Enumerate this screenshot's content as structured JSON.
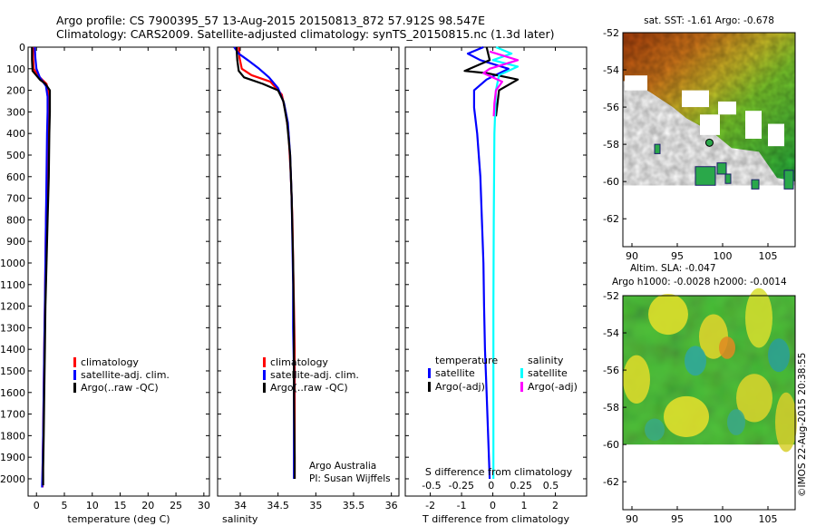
{
  "header": {
    "line1": "Argo profile: CS 7900395_57 13-Aug-2015 20150813_872 57.912S 98.547E",
    "line2": "Climatology: CARS2009. Satellite-adjusted climatology: synTS_20150815.nc (1.3d later)"
  },
  "credit": {
    "line1": "Argo Australia",
    "line2": "PI: Susan Wijffels"
  },
  "watermark": "©IMOS 22-Aug-2015 20:38:55",
  "colors": {
    "climatology": "#ff0000",
    "satellite": "#0000ff",
    "argo": "#000000",
    "sal_satellite": "#00ffff",
    "sal_argo": "#ff00ff"
  },
  "chart_data": [
    {
      "id": "temperature",
      "type": "line",
      "xlabel": "temperature (deg C)",
      "ylabel": "",
      "xlim": [
        -1.5,
        31
      ],
      "ylim": [
        2080,
        0
      ],
      "xticks": [
        0,
        5,
        10,
        15,
        20,
        25,
        30
      ],
      "yticks": [
        0,
        100,
        200,
        300,
        400,
        500,
        600,
        700,
        800,
        900,
        1000,
        1100,
        1200,
        1300,
        1400,
        1500,
        1600,
        1700,
        1800,
        1900,
        2000
      ],
      "legend": [
        "climatology",
        "satellite-adj. clim.",
        "Argo(..raw -QC)"
      ],
      "series": [
        {
          "name": "climatology",
          "color": "#ff0000",
          "points": [
            [
              -0.6,
              0
            ],
            [
              -0.6,
              50
            ],
            [
              -0.5,
              100
            ],
            [
              0.2,
              130
            ],
            [
              1.8,
              170
            ],
            [
              2.2,
              220
            ],
            [
              2.1,
              300
            ],
            [
              2.0,
              400
            ],
            [
              1.9,
              600
            ],
            [
              1.7,
              800
            ],
            [
              1.6,
              1000
            ],
            [
              1.5,
              1200
            ],
            [
              1.4,
              1400
            ],
            [
              1.3,
              1600
            ],
            [
              1.2,
              1800
            ],
            [
              1.1,
              1950
            ],
            [
              1.1,
              2040
            ]
          ]
        },
        {
          "name": "satellite-adj. clim.",
          "color": "#0000ff",
          "points": [
            [
              -0.3,
              0
            ],
            [
              -0.2,
              50
            ],
            [
              0.0,
              100
            ],
            [
              0.6,
              140
            ],
            [
              1.7,
              180
            ],
            [
              2.0,
              230
            ],
            [
              2.0,
              300
            ],
            [
              1.9,
              400
            ],
            [
              1.8,
              600
            ],
            [
              1.7,
              800
            ],
            [
              1.6,
              1000
            ],
            [
              1.5,
              1200
            ],
            [
              1.4,
              1400
            ],
            [
              1.3,
              1600
            ],
            [
              1.2,
              1800
            ],
            [
              1.1,
              1950
            ],
            [
              1.0,
              2040
            ]
          ]
        },
        {
          "name": "Argo(..raw -QC)",
          "color": "#000000",
          "points": [
            [
              -0.8,
              0
            ],
            [
              -0.8,
              60
            ],
            [
              -0.7,
              110
            ],
            [
              0.6,
              150
            ],
            [
              1.6,
              170
            ],
            [
              2.4,
              200
            ],
            [
              2.4,
              300
            ],
            [
              2.3,
              400
            ],
            [
              2.2,
              600
            ],
            [
              2.0,
              800
            ],
            [
              1.8,
              1000
            ],
            [
              1.6,
              1200
            ],
            [
              1.5,
              1400
            ],
            [
              1.4,
              1600
            ],
            [
              1.3,
              1800
            ],
            [
              1.2,
              1950
            ],
            [
              1.2,
              2030
            ]
          ]
        }
      ]
    },
    {
      "id": "salinity",
      "type": "line",
      "xlabel": "salinity",
      "ylabel": "",
      "xlim": [
        33.7,
        36.1
      ],
      "ylim": [
        2080,
        0
      ],
      "xticks": [
        34,
        34.5,
        35,
        35.5,
        36
      ],
      "xticklabels": [
        "34",
        "34.5",
        "35",
        "35.5",
        "36"
      ],
      "legend": [
        "climatology",
        "satellite-adj. clim.",
        "Argo(..raw -QC)"
      ],
      "series": [
        {
          "name": "climatology",
          "color": "#ff0000",
          "points": [
            [
              33.98,
              0
            ],
            [
              33.99,
              50
            ],
            [
              34.02,
              100
            ],
            [
              34.15,
              130
            ],
            [
              34.4,
              160
            ],
            [
              34.55,
              220
            ],
            [
              34.6,
              300
            ],
            [
              34.64,
              400
            ],
            [
              34.67,
              600
            ],
            [
              34.69,
              800
            ],
            [
              34.7,
              1000
            ],
            [
              34.71,
              1200
            ],
            [
              34.72,
              1400
            ],
            [
              34.72,
              1600
            ],
            [
              34.72,
              1800
            ],
            [
              34.72,
              2000
            ]
          ]
        },
        {
          "name": "satellite-adj. clim.",
          "color": "#0000ff",
          "points": [
            [
              33.92,
              0
            ],
            [
              33.98,
              30
            ],
            [
              34.1,
              60
            ],
            [
              34.25,
              100
            ],
            [
              34.38,
              140
            ],
            [
              34.5,
              190
            ],
            [
              34.58,
              260
            ],
            [
              34.63,
              350
            ],
            [
              34.66,
              500
            ],
            [
              34.68,
              700
            ],
            [
              34.69,
              900
            ],
            [
              34.7,
              1100
            ],
            [
              34.7,
              1300
            ],
            [
              34.71,
              1500
            ],
            [
              34.71,
              1700
            ],
            [
              34.71,
              1900
            ],
            [
              34.71,
              2000
            ]
          ]
        },
        {
          "name": "Argo(..raw -QC)",
          "color": "#000000",
          "points": [
            [
              33.95,
              0
            ],
            [
              33.96,
              60
            ],
            [
              33.98,
              110
            ],
            [
              34.05,
              140
            ],
            [
              34.3,
              170
            ],
            [
              34.5,
              200
            ],
            [
              34.57,
              250
            ],
            [
              34.62,
              350
            ],
            [
              34.66,
              500
            ],
            [
              34.68,
              700
            ],
            [
              34.7,
              1000
            ],
            [
              34.71,
              1300
            ],
            [
              34.71,
              1600
            ],
            [
              34.72,
              1900
            ],
            [
              34.72,
              2000
            ]
          ]
        }
      ]
    },
    {
      "id": "difference",
      "type": "line",
      "xlabel": "T difference from climatology",
      "xlabel2": "S difference from climatology",
      "xlim": [
        -2.8,
        3.0
      ],
      "ylim": [
        2080,
        0
      ],
      "xticks": [
        -2,
        -1,
        0,
        1,
        2
      ],
      "xticks2": [
        -0.5,
        -0.25,
        0,
        0.25,
        0.5
      ],
      "xticklabels2": [
        "-0.5",
        "-0.25",
        "0",
        "0.25",
        "0.5"
      ],
      "legend_headers": [
        "temperature",
        "salinity"
      ],
      "legend": [
        "satellite",
        "Argo(-adj)",
        "satellite",
        "Argo(-adj)"
      ],
      "series": [
        {
          "name": "satellite",
          "color": "#0000ff",
          "points": [
            [
              -0.3,
              0
            ],
            [
              -0.8,
              30
            ],
            [
              -0.4,
              60
            ],
            [
              0.5,
              100
            ],
            [
              -0.2,
              150
            ],
            [
              -0.6,
              200
            ],
            [
              -0.6,
              280
            ],
            [
              -0.5,
              400
            ],
            [
              -0.4,
              600
            ],
            [
              -0.35,
              800
            ],
            [
              -0.3,
              1000
            ],
            [
              -0.28,
              1200
            ],
            [
              -0.25,
              1400
            ],
            [
              -0.2,
              1600
            ],
            [
              -0.15,
              1800
            ],
            [
              -0.1,
              2000
            ]
          ]
        },
        {
          "name": "Argo(-adj)",
          "color": "#000000",
          "points": [
            [
              -0.2,
              0
            ],
            [
              -0.1,
              60
            ],
            [
              -0.9,
              110
            ],
            [
              -0.2,
              120
            ],
            [
              0.8,
              150
            ],
            [
              0.2,
              200
            ],
            [
              0.15,
              260
            ],
            [
              0.1,
              320
            ]
          ]
        },
        {
          "name": "satellite",
          "color": "#00ffff",
          "points": [
            [
              0.1,
              0
            ],
            [
              0.6,
              30
            ],
            [
              0.0,
              60
            ],
            [
              0.8,
              90
            ],
            [
              0.2,
              130
            ],
            [
              0.1,
              200
            ],
            [
              0.05,
              400
            ],
            [
              0.03,
              800
            ],
            [
              0.02,
              1200
            ],
            [
              0.02,
              1600
            ],
            [
              0.02,
              2000
            ]
          ]
        },
        {
          "name": "Argo(-adj)",
          "color": "#ff00ff",
          "points": [
            [
              -0.1,
              20
            ],
            [
              0.8,
              60
            ],
            [
              -0.1,
              100
            ],
            [
              -0.3,
              120
            ],
            [
              0.3,
              160
            ],
            [
              0.1,
              200
            ],
            [
              0.05,
              260
            ],
            [
              0.03,
              320
            ]
          ]
        }
      ]
    },
    {
      "id": "sst_map",
      "type": "heatmap",
      "title": "sat. SST: -1.61  Argo: -0.678",
      "xlim": [
        89,
        108
      ],
      "ylim": [
        -63.5,
        -52
      ],
      "xticks": [
        90,
        95,
        100,
        105
      ],
      "yticks": [
        -52,
        -54,
        -56,
        -58,
        -60,
        -62
      ],
      "marker": {
        "lon": 98.547,
        "lat": -57.912
      }
    },
    {
      "id": "sla_map",
      "type": "heatmap",
      "title": "Altim. SLA: -0.047",
      "subtitle": "Argo h1000: -0.0028  h2000: -0.0014",
      "xlim": [
        89,
        108
      ],
      "ylim": [
        -63.5,
        -52
      ],
      "xticks": [
        90,
        95,
        100,
        105
      ],
      "yticks": [
        -52,
        -54,
        -56,
        -58,
        -60,
        -62
      ]
    }
  ]
}
